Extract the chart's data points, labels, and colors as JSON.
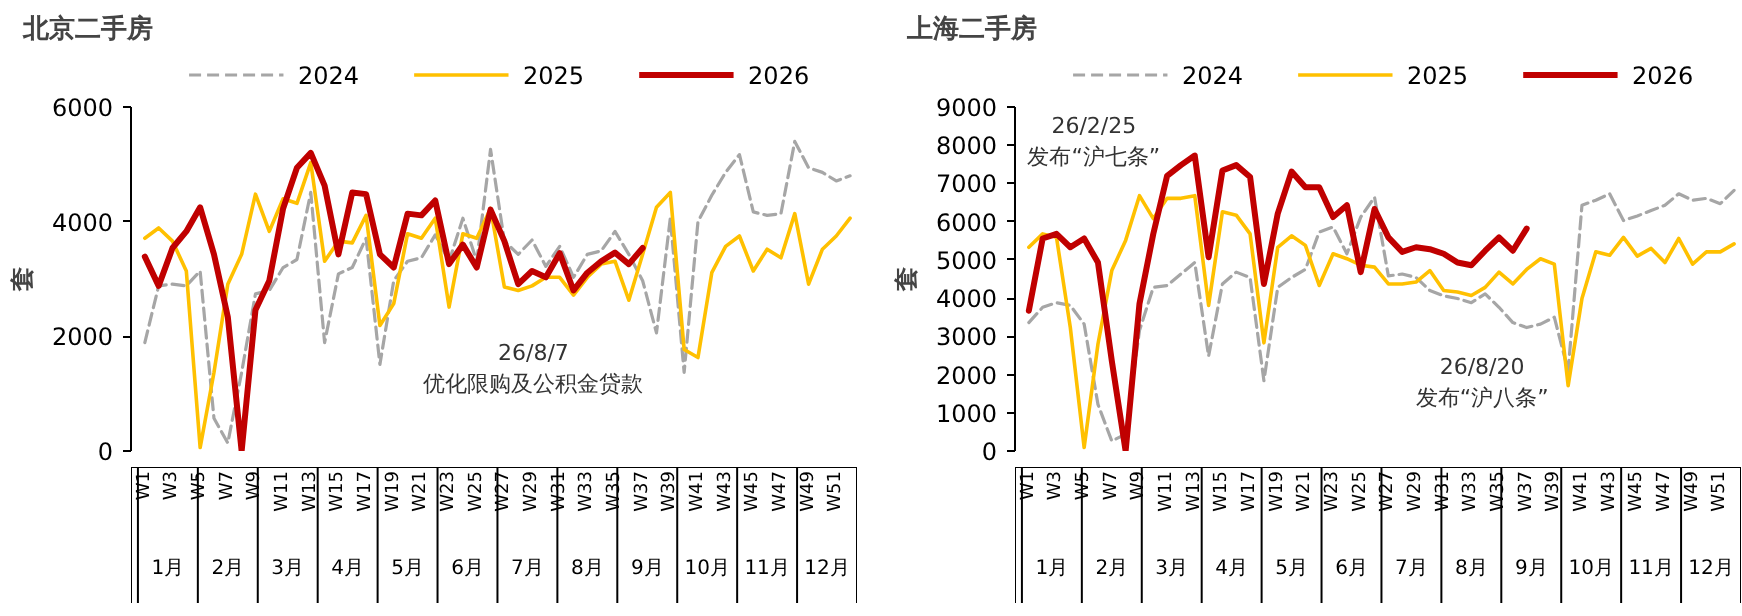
{
  "chart_data": [
    {
      "type": "line",
      "title": "北京二手房",
      "ylabel": "套",
      "legend": "top",
      "grid": false,
      "categories": [
        "W1",
        null,
        "W3",
        null,
        "W5",
        null,
        "W7",
        null,
        "W9",
        null,
        "W11",
        null,
        "W13",
        null,
        "W15",
        null,
        "W17",
        null,
        "W19",
        null,
        "W21",
        null,
        "W23",
        null,
        "W25",
        null,
        "W27",
        null,
        "W29",
        null,
        "W31",
        null,
        "W33",
        null,
        "W35",
        null,
        "W37",
        null,
        "W39",
        null,
        "W41",
        null,
        "W43",
        null,
        "W45",
        null,
        "W47",
        null,
        "W49",
        null,
        "W51",
        null
      ],
      "ylim": [
        0,
        6000
      ],
      "yticks": [
        0,
        2000,
        4000,
        6000
      ],
      "series": [
        {
          "name": "2024",
          "color": "#a6a6a6",
          "line_style": "dashed",
          "values": [
            1890,
            2880,
            2910,
            2880,
            3140,
            570,
            140,
            1370,
            2740,
            2800,
            3200,
            3340,
            4510,
            1890,
            3090,
            3200,
            3710,
            1510,
            2970,
            3310,
            3370,
            3770,
            3310,
            4060,
            3310,
            5260,
            3660,
            3430,
            3680,
            3220,
            3570,
            3030,
            3430,
            3490,
            3830,
            3430,
            2970,
            2060,
            4060,
            1370,
            4000,
            4460,
            4860,
            5170,
            4170,
            4110,
            4140,
            5400,
            4940,
            4860,
            4710,
            4800
          ]
        },
        {
          "name": "2025",
          "color": "#ffc000",
          "line_style": "solid",
          "values": [
            3710,
            3890,
            3660,
            3140,
            60,
            1370,
            2910,
            3430,
            4480,
            3830,
            4400,
            4320,
            5030,
            3310,
            3660,
            3630,
            4110,
            2190,
            2570,
            3790,
            3710,
            4060,
            2510,
            3790,
            3710,
            4230,
            2860,
            2800,
            2880,
            3030,
            3030,
            2720,
            3030,
            3260,
            3310,
            2630,
            3430,
            4250,
            4510,
            1770,
            1630,
            3110,
            3570,
            3750,
            3140,
            3520,
            3370,
            4140,
            2910,
            3520,
            3750,
            4060
          ]
        },
        {
          "name": "2026",
          "color": "#c00000",
          "line_style": "solid",
          "values": [
            3390,
            2880,
            3540,
            3830,
            4250,
            3430,
            2340,
            0,
            2460,
            2970,
            4230,
            4940,
            5200,
            4630,
            3430,
            4510,
            4480,
            3430,
            3200,
            4140,
            4110,
            4370,
            3260,
            3600,
            3200,
            4210,
            3660,
            2910,
            3140,
            3030,
            3450,
            2800,
            3110,
            3310,
            3460,
            3260,
            3540,
            null,
            null,
            null,
            null,
            null,
            null,
            null,
            null,
            null,
            null,
            null,
            null,
            null,
            null,
            null
          ]
        }
      ],
      "annotations": [
        "26/8/7\n优化限购及公积金贷款",
        "1月",
        "2月",
        "3月",
        "4月",
        "5月",
        "6月",
        "7月",
        "8月",
        "9月",
        "10月",
        "11月",
        "12月"
      ]
    },
    {
      "type": "line",
      "title": "上海二手房",
      "ylabel": "套",
      "legend": "top",
      "grid": false,
      "categories": [
        "W1",
        null,
        "W3",
        null,
        "W5",
        null,
        "W7",
        null,
        "W9",
        null,
        "W11",
        null,
        "W13",
        null,
        "W15",
        null,
        "W17",
        null,
        "W19",
        null,
        "W21",
        null,
        "W23",
        null,
        "W25",
        null,
        "W27",
        null,
        "W29",
        null,
        "W31",
        null,
        "W33",
        null,
        "W35",
        null,
        "W37",
        null,
        "W39",
        null,
        "W41",
        null,
        "W43",
        null,
        "W45",
        null,
        "W47",
        null,
        "W49",
        null,
        "W51",
        null
      ],
      "ylim": [
        0,
        9000
      ],
      "yticks": [
        0,
        1000,
        2000,
        3000,
        4000,
        5000,
        6000,
        7000,
        8000,
        9000
      ],
      "series": [
        {
          "name": "2024",
          "color": "#a6a6a6",
          "line_style": "dashed",
          "values": [
            3360,
            3760,
            3880,
            3810,
            3320,
            1220,
            260,
            440,
            3150,
            4280,
            4330,
            4630,
            4930,
            2480,
            4370,
            4680,
            4540,
            1840,
            4280,
            4540,
            4750,
            5730,
            5860,
            5160,
            6120,
            6640,
            4580,
            4630,
            4540,
            4200,
            4060,
            3990,
            3880,
            4110,
            3760,
            3360,
            3230,
            3320,
            3500,
            2100,
            6430,
            6560,
            6730,
            6030,
            6150,
            6290,
            6430,
            6730,
            6560,
            6610,
            6470,
            6820
          ]
        },
        {
          "name": "2025",
          "color": "#ffc000",
          "line_style": "solid",
          "values": [
            5330,
            5680,
            5590,
            3230,
            90,
            2800,
            4720,
            5510,
            6680,
            6080,
            6610,
            6610,
            6680,
            3810,
            6260,
            6170,
            5680,
            2830,
            5330,
            5630,
            5380,
            4330,
            5160,
            5030,
            4860,
            4810,
            4370,
            4370,
            4420,
            4720,
            4200,
            4160,
            4070,
            4280,
            4680,
            4370,
            4750,
            5030,
            4890,
            1710,
            3990,
            5210,
            5120,
            5590,
            5100,
            5300,
            4930,
            5560,
            4890,
            5210,
            5210,
            5420
          ]
        },
        {
          "name": "2026",
          "color": "#c00000",
          "line_style": "solid",
          "values": [
            3670,
            5560,
            5680,
            5330,
            5560,
            4930,
            2360,
            0,
            3850,
            5680,
            7200,
            7480,
            7730,
            5070,
            7340,
            7480,
            7170,
            4370,
            6210,
            7310,
            6900,
            6900,
            6120,
            6430,
            4680,
            6330,
            5590,
            5210,
            5330,
            5280,
            5160,
            4930,
            4860,
            5240,
            5590,
            5240,
            5820,
            null,
            null,
            null,
            null,
            null,
            null,
            null,
            null,
            null,
            null,
            null,
            null,
            null,
            null,
            null
          ]
        }
      ],
      "annotations": [
        "26/2/25\n发布“沪七条”",
        "26/8/20\n发布“沪八条”",
        "1月",
        "2月",
        "3月",
        "4月",
        "5月",
        "6月",
        "7月",
        "8月",
        "9月",
        "10月",
        "11月",
        "12月"
      ]
    }
  ]
}
